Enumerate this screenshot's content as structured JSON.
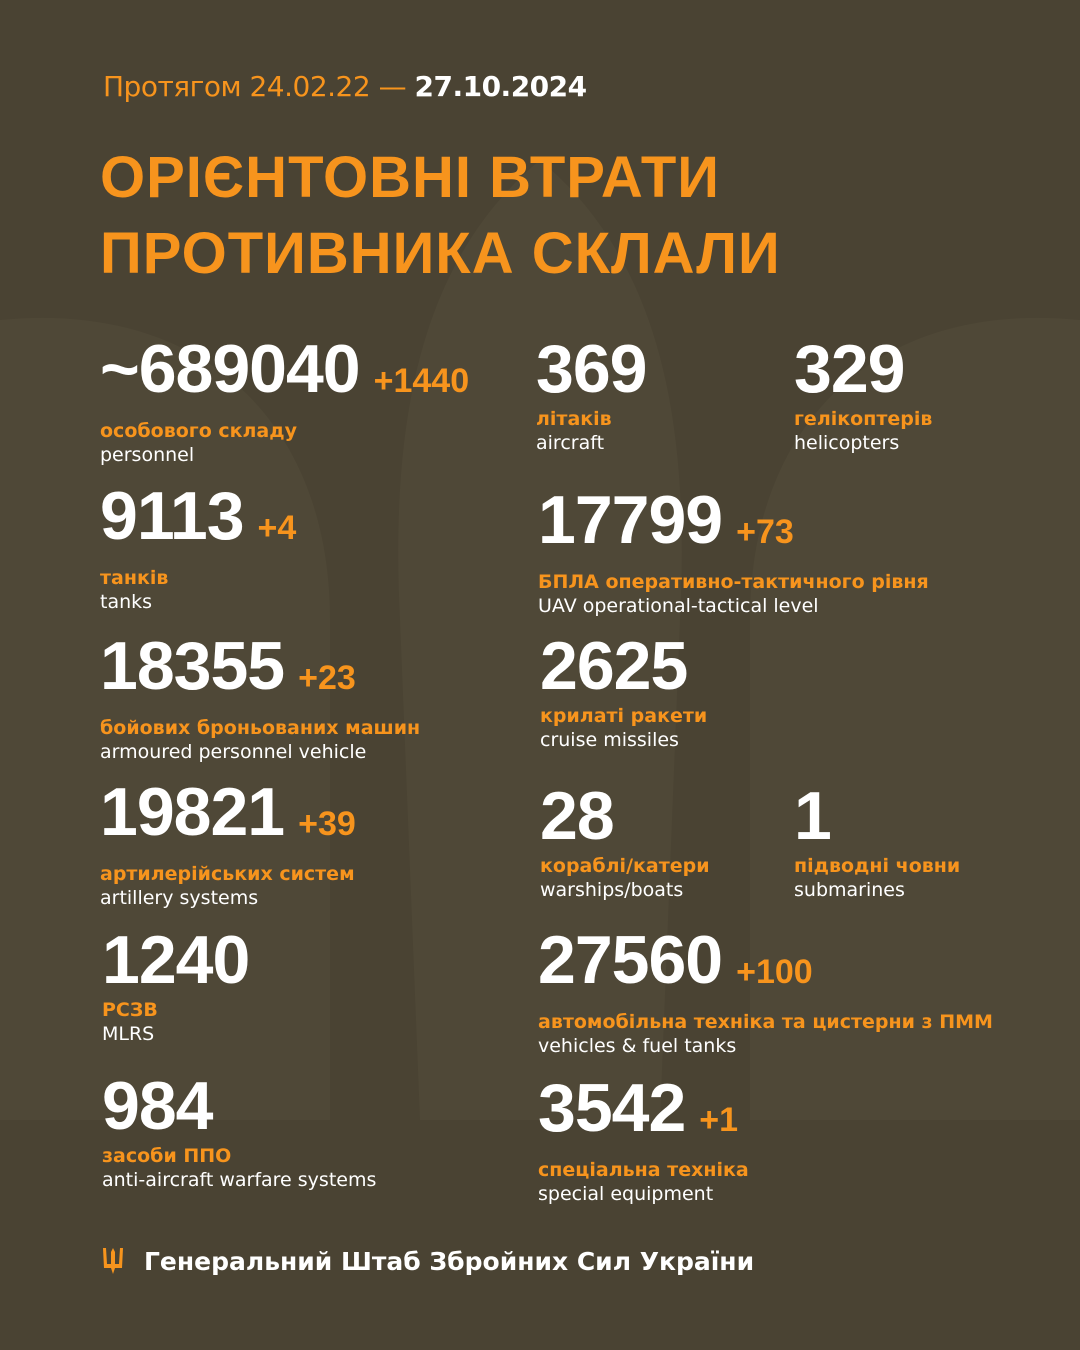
{
  "header": {
    "period_prefix": "Протягом 24.02.22 —",
    "period_end": "27.10.2024",
    "title_line1": "ОРІЄНТОВНІ ВТРАТИ",
    "title_line2": "ПРОТИВНИКА СКЛАЛИ"
  },
  "colors": {
    "background": "#4a4333",
    "accent": "#f7941d",
    "text": "#ffffff"
  },
  "stats": [
    {
      "id": "personnel",
      "value": "~689040",
      "delta": "+1440",
      "label_ua": "особового складу",
      "label_en": "personnel"
    },
    {
      "id": "aircraft",
      "value": "369",
      "delta": "",
      "label_ua": "літаків",
      "label_en": "aircraft"
    },
    {
      "id": "helicopters",
      "value": "329",
      "delta": "",
      "label_ua": "гелікоптерів",
      "label_en": "helicopters"
    },
    {
      "id": "tanks",
      "value": "9113",
      "delta": "+4",
      "label_ua": "танків",
      "label_en": "tanks"
    },
    {
      "id": "uav",
      "value": "17799",
      "delta": "+73",
      "label_ua": "БПЛА оперативно-тактичного рівня",
      "label_en": "UAV operational-tactical level"
    },
    {
      "id": "apv",
      "value": "18355",
      "delta": "+23",
      "label_ua": "бойових броньованих машин",
      "label_en": "armoured personnel vehicle"
    },
    {
      "id": "cruise-missiles",
      "value": "2625",
      "delta": "",
      "label_ua": "крилаті ракети",
      "label_en": "cruise missiles"
    },
    {
      "id": "artillery",
      "value": "19821",
      "delta": "+39",
      "label_ua": "артилерійських систем",
      "label_en": "artillery systems"
    },
    {
      "id": "warships",
      "value": "28",
      "delta": "",
      "label_ua": "кораблі/катери",
      "label_en": "warships/boats"
    },
    {
      "id": "submarines",
      "value": "1",
      "delta": "",
      "label_ua": "підводні човни",
      "label_en": "submarines"
    },
    {
      "id": "mlrs",
      "value": "1240",
      "delta": "",
      "label_ua": "РСЗВ",
      "label_en": "MLRS"
    },
    {
      "id": "vehicles",
      "value": "27560",
      "delta": "+100",
      "label_ua": "автомобільна техніка та цистерни з ПММ",
      "label_en": "vehicles & fuel tanks"
    },
    {
      "id": "air-defense",
      "value": "984",
      "delta": "",
      "label_ua": "засоби ППО",
      "label_en": "anti-aircraft warfare systems"
    },
    {
      "id": "special-equipment",
      "value": "3542",
      "delta": "+1",
      "label_ua": "спеціальна техніка",
      "label_en": "special equipment"
    }
  ],
  "footer": {
    "icon": "trident-icon",
    "text": "Генеральний Штаб Збройних Сил України"
  }
}
